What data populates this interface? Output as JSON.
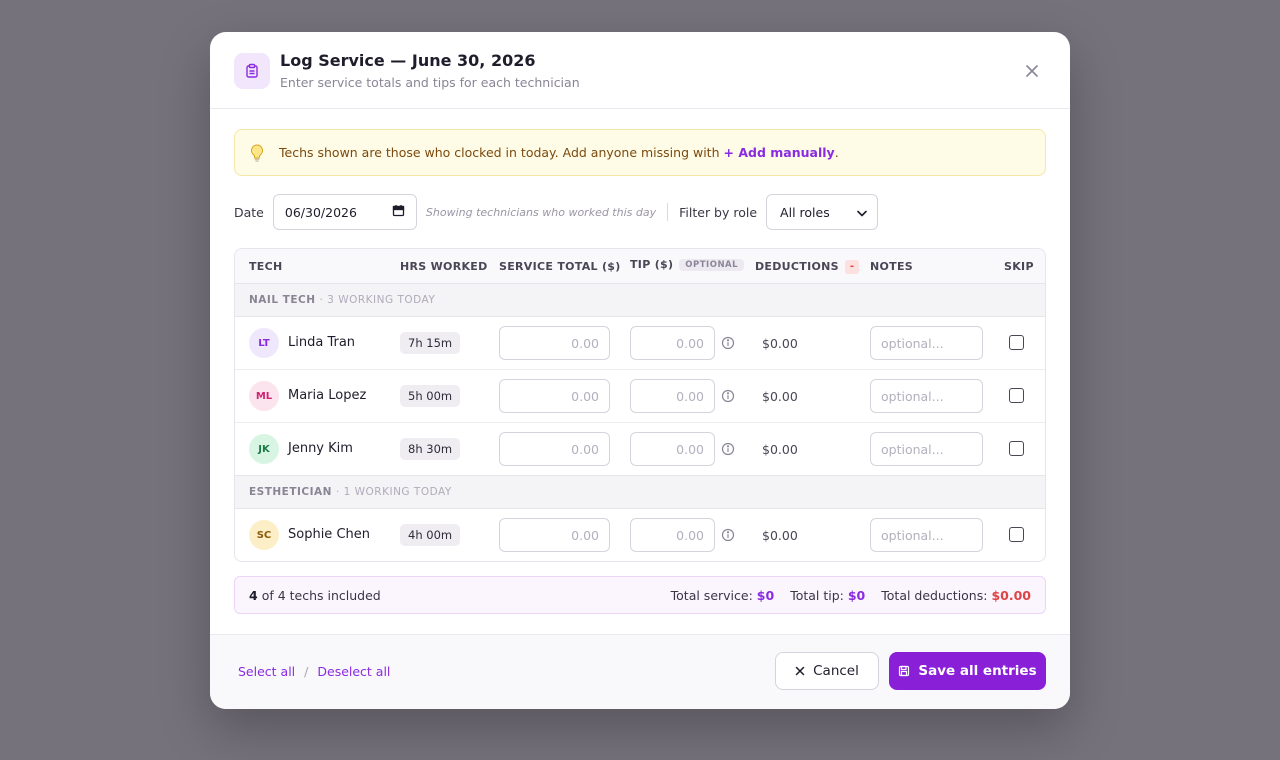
{
  "header": {
    "title": "Log Service — June 30, 2026",
    "subtitle": "Enter service totals and tips for each technician"
  },
  "banner": {
    "text": "Techs shown are those who clocked in today. Add anyone missing with",
    "link": "+ Add manually",
    "suffix": "."
  },
  "filters": {
    "date_label": "Date",
    "date_value": "06/30/2026",
    "hint": "Showing technicians who worked this day",
    "role_label": "Filter by role",
    "role_value": "All roles"
  },
  "table": {
    "columns": {
      "tech": "TECH",
      "hrs": "HRS WORKED",
      "service": "SERVICE TOTAL ($)",
      "tip": "TIP ($)",
      "tip_badge": "OPTIONAL",
      "deductions": "DEDUCTIONS",
      "deductions_badge": "-",
      "notes": "NOTES",
      "skip": "SKIP"
    },
    "groups": [
      {
        "name": "NAIL TECH",
        "count": "· 3 WORKING TODAY",
        "rows": [
          {
            "initials": "LT",
            "name": "Linda Tran",
            "hours": "7h 15m",
            "service": "0.00",
            "tip": "0.00",
            "deductions": "$0.00",
            "notes": "optional...",
            "avatar_bg": "#efe7fb",
            "avatar_fg": "#8a2be2"
          },
          {
            "initials": "ML",
            "name": "Maria Lopez",
            "hours": "5h 00m",
            "service": "0.00",
            "tip": "0.00",
            "deductions": "$0.00",
            "notes": "optional...",
            "avatar_bg": "#fce4ef",
            "avatar_fg": "#d0246e"
          },
          {
            "initials": "JK",
            "name": "Jenny Kim",
            "hours": "8h 30m",
            "service": "0.00",
            "tip": "0.00",
            "deductions": "$0.00",
            "notes": "optional...",
            "avatar_bg": "#d8f5e3",
            "avatar_fg": "#1d7a45"
          }
        ]
      },
      {
        "name": "ESTHETICIAN",
        "count": "· 1 WORKING TODAY",
        "rows": [
          {
            "initials": "SC",
            "name": "Sophie Chen",
            "hours": "4h 00m",
            "service": "0.00",
            "tip": "0.00",
            "deductions": "$0.00",
            "notes": "optional...",
            "avatar_bg": "#fcefc7",
            "avatar_fg": "#8a5a0a"
          }
        ]
      }
    ]
  },
  "summary": {
    "included_count": "4",
    "included_text": "of 4 techs included",
    "service_label": "Total service:",
    "service_value": "$0",
    "tip_label": "Total tip:",
    "tip_value": "$0",
    "deductions_label": "Total deductions:",
    "deductions_value": "$0.00"
  },
  "footer": {
    "select_all": "Select all",
    "separator": "/",
    "deselect_all": "Deselect all",
    "cancel": "Cancel",
    "save": "Save all entries"
  },
  "colors": {
    "accent": "#8a1fd8",
    "danger": "#e04343"
  }
}
